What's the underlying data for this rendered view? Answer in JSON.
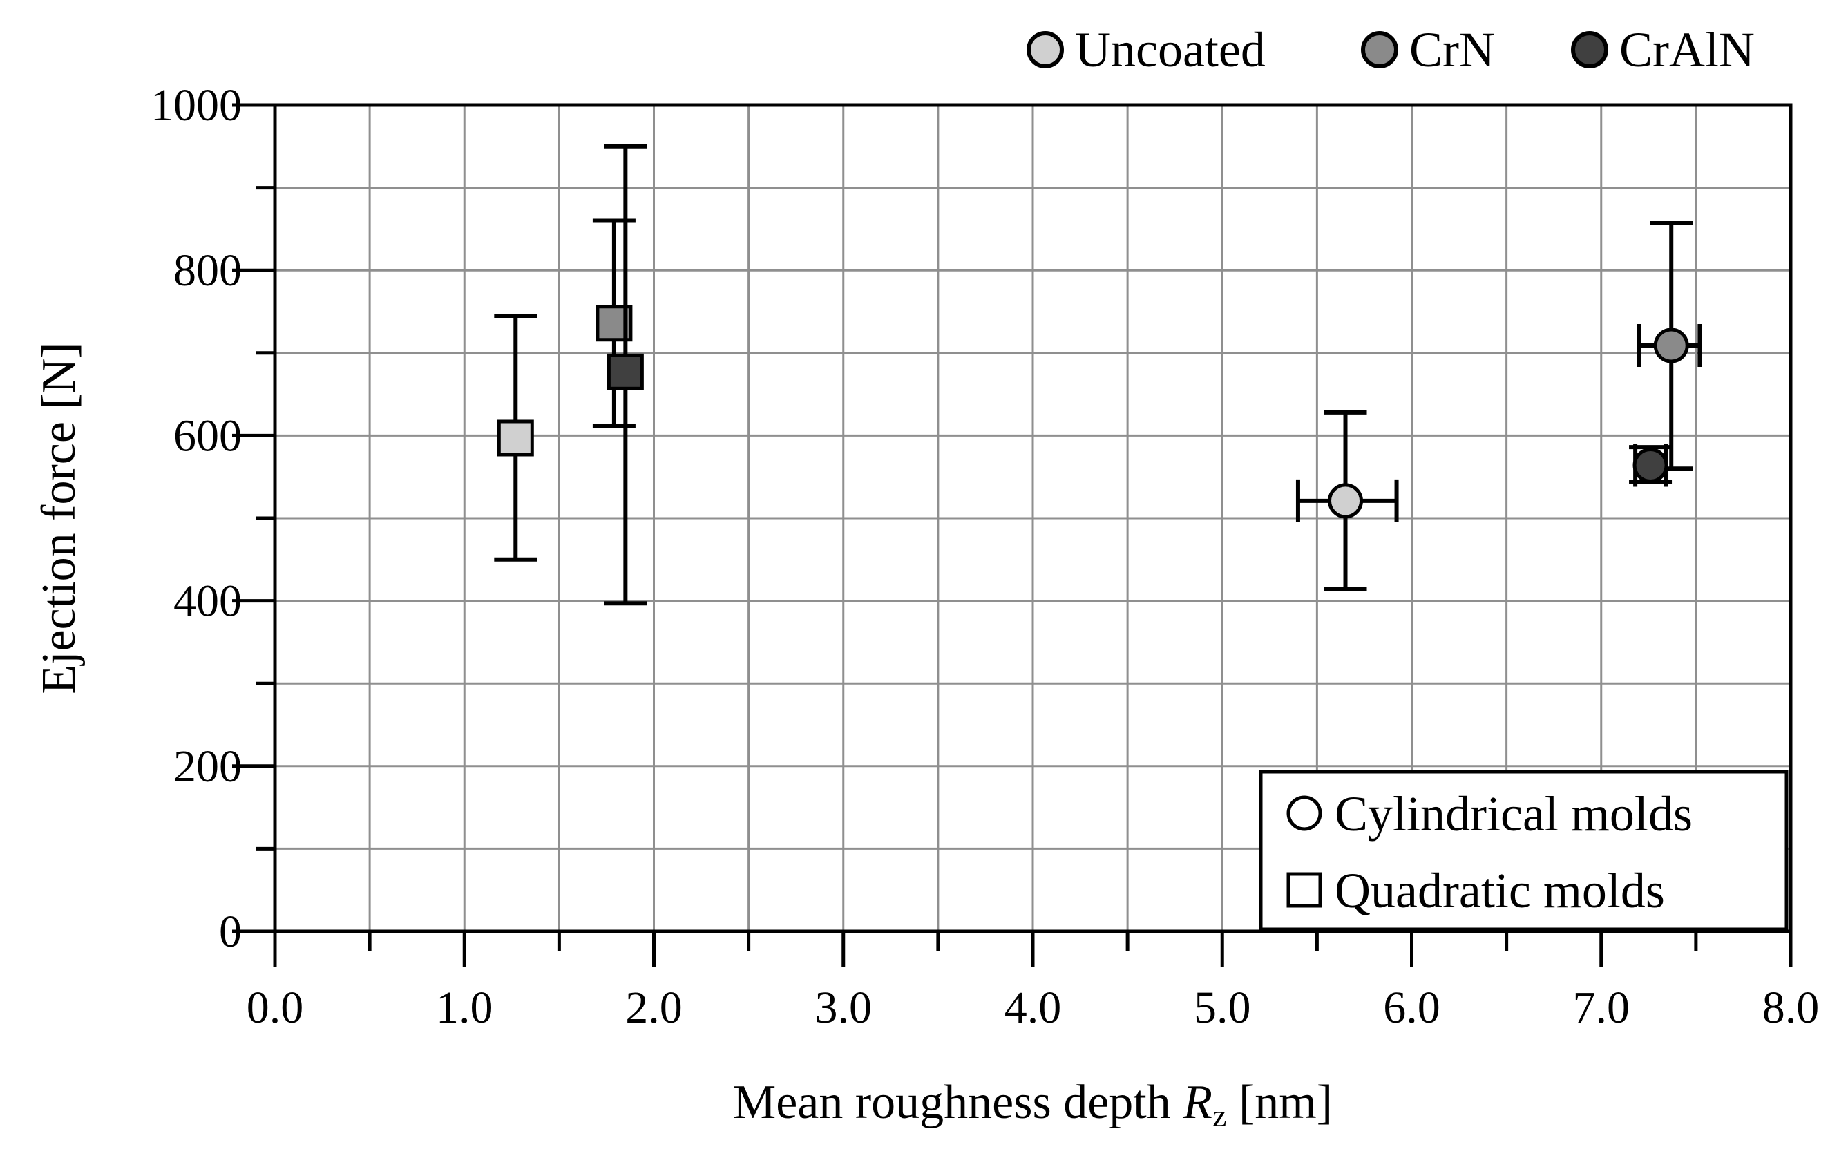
{
  "chart_data": {
    "type": "scatter",
    "xlabel": {
      "prefix": "Mean roughness depth ",
      "symbol": "R",
      "subscript": "z",
      "unit": " [nm]"
    },
    "ylabel": "Ejection force [N]",
    "xlim": [
      0,
      8
    ],
    "ylim": [
      0,
      1000
    ],
    "x_ticks": [
      {
        "value": 0,
        "label": "0.0"
      },
      {
        "value": 1,
        "label": "1.0"
      },
      {
        "value": 2,
        "label": "2.0"
      },
      {
        "value": 3,
        "label": "3.0"
      },
      {
        "value": 4,
        "label": "4.0"
      },
      {
        "value": 5,
        "label": "5.0"
      },
      {
        "value": 6,
        "label": "6.0"
      },
      {
        "value": 7,
        "label": "7.0"
      },
      {
        "value": 8,
        "label": "8.0"
      }
    ],
    "y_ticks": [
      {
        "value": 0,
        "label": "0"
      },
      {
        "value": 200,
        "label": "200"
      },
      {
        "value": 400,
        "label": "400"
      },
      {
        "value": 600,
        "label": "600"
      },
      {
        "value": 800,
        "label": "800"
      },
      {
        "value": 1000,
        "label": "1000"
      }
    ],
    "x_grid_step": 0.5,
    "y_grid_step": 100,
    "grid": true,
    "materials": [
      {
        "name": "Uncoated",
        "color": "#d0d0d0"
      },
      {
        "name": "CrN",
        "color": "#8a8a8a"
      },
      {
        "name": "CrAlN",
        "color": "#404040"
      }
    ],
    "shapes": [
      {
        "name": "Cylindrical molds",
        "marker": "circle"
      },
      {
        "name": "Quadratic molds",
        "marker": "square"
      }
    ],
    "points": [
      {
        "material": "Uncoated",
        "shape": "Quadratic molds",
        "x": 1.27,
        "y": 597,
        "y_low": 450,
        "y_high": 745,
        "x_low": 1.27,
        "x_high": 1.27
      },
      {
        "material": "CrN",
        "shape": "Quadratic molds",
        "x": 1.79,
        "y": 736,
        "y_low": 612,
        "y_high": 860,
        "x_low": 1.79,
        "x_high": 1.79
      },
      {
        "material": "CrAlN",
        "shape": "Quadratic molds",
        "x": 1.85,
        "y": 677,
        "y_low": 397,
        "y_high": 950,
        "x_low": 1.85,
        "x_high": 1.85
      },
      {
        "material": "Uncoated",
        "shape": "Cylindrical molds",
        "x": 5.65,
        "y": 521,
        "y_low": 414,
        "y_high": 628,
        "x_low": 5.4,
        "x_high": 5.92
      },
      {
        "material": "CrN",
        "shape": "Cylindrical molds",
        "x": 7.37,
        "y": 709,
        "y_low": 560,
        "y_high": 857,
        "x_low": 7.2,
        "x_high": 7.52
      },
      {
        "material": "CrAlN",
        "shape": "Cylindrical molds",
        "x": 7.26,
        "y": 564,
        "y_low": 544,
        "y_high": 586,
        "x_low": 7.18,
        "x_high": 7.34
      }
    ]
  }
}
